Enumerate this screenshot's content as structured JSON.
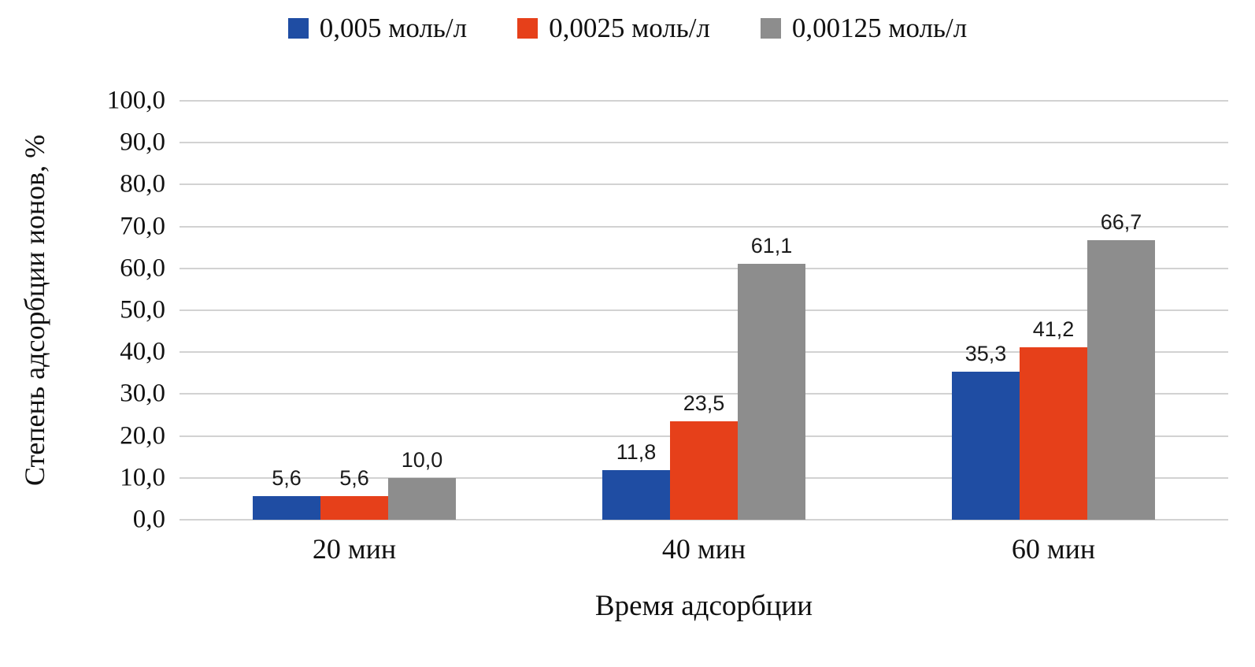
{
  "chart_data": {
    "type": "bar",
    "title": "",
    "categories": [
      "20 мин",
      "40 мин",
      "60 мин"
    ],
    "series": [
      {
        "name": "0,005 моль/л",
        "color": "#1f4da3",
        "values": [
          5.6,
          11.8,
          35.3
        ],
        "labels": [
          "5,6",
          "11,8",
          "35,3"
        ]
      },
      {
        "name": "0,0025 моль/л",
        "color": "#e6401a",
        "values": [
          5.6,
          23.5,
          41.2
        ],
        "labels": [
          "5,6",
          "23,5",
          "41,2"
        ]
      },
      {
        "name": "0,00125 моль/л",
        "color": "#8d8d8d",
        "values": [
          10.0,
          61.1,
          66.7
        ],
        "labels": [
          "10,0",
          "61,1",
          "66,7"
        ]
      }
    ],
    "xlabel": "Время адсорбции",
    "ylabel": "Степень адсорбции ионов, %",
    "ylim": [
      0,
      100
    ],
    "y_tick_step": 10,
    "y_tick_labels": [
      "0,0",
      "10,0",
      "20,0",
      "30,0",
      "40,0",
      "50,0",
      "60,0",
      "70,0",
      "80,0",
      "90,0",
      "100,0"
    ],
    "grid": true,
    "legend_position": "top",
    "gridline_color": "#d2d2d2",
    "background_color": "#ffffff"
  }
}
